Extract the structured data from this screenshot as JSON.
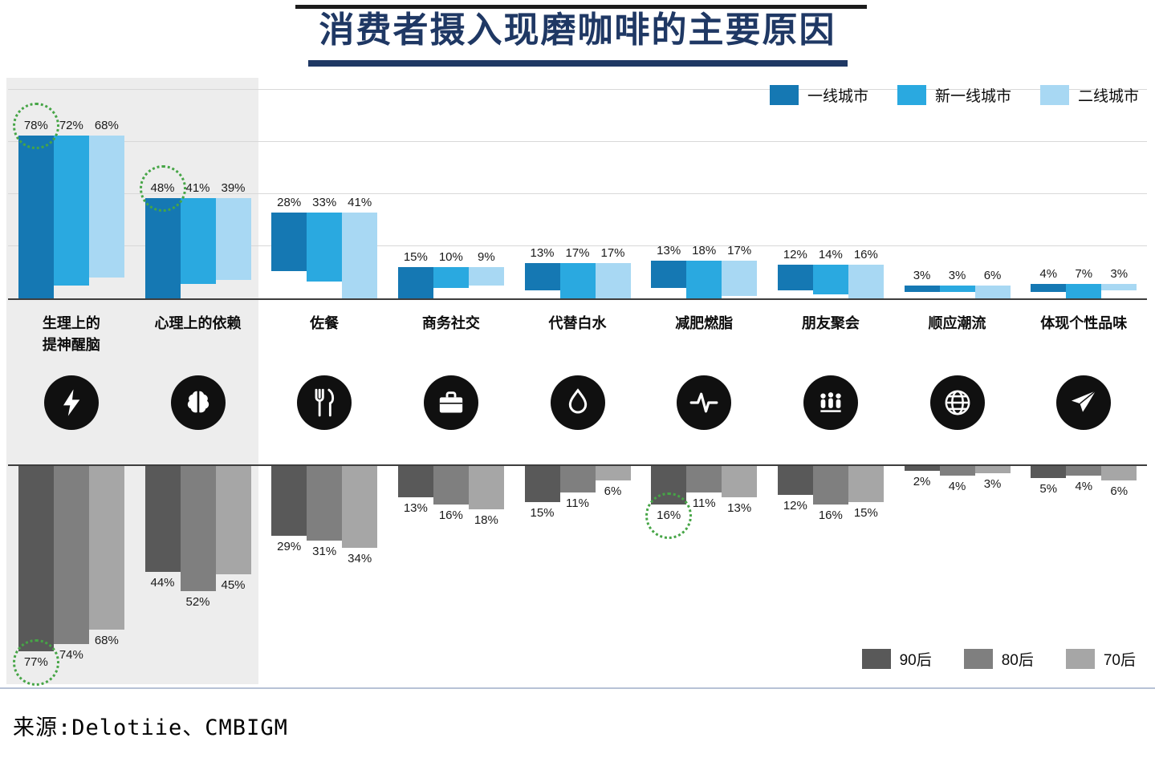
{
  "title": "消费者摄入现磨咖啡的主要原因",
  "source": "来源:Delotiie、CMBIGM",
  "legend_top": [
    {
      "label": "一线城市",
      "color": "#1578b3"
    },
    {
      "label": "新一线城市",
      "color": "#2aa9e0"
    },
    {
      "label": "二线城市",
      "color": "#a8d8f3"
    }
  ],
  "legend_bottom": [
    {
      "label": "90后",
      "color": "#595959"
    },
    {
      "label": "80后",
      "color": "#7f7f7f"
    },
    {
      "label": "70后",
      "color": "#a6a6a6"
    }
  ],
  "chart_data": {
    "type": "bar",
    "title": "消费者摄入现磨咖啡的主要原因",
    "categories": [
      "生理上的提神醒脑",
      "心理上的依赖",
      "佐餐",
      "商务社交",
      "代替白水",
      "减肥燃脂",
      "朋友聚会",
      "顺应潮流",
      "体现个性品味"
    ],
    "category_lines": [
      [
        "生理上的",
        "提神醒脑"
      ],
      [
        "心理上的依赖"
      ],
      [
        "佐餐"
      ],
      [
        "商务社交"
      ],
      [
        "代替白水"
      ],
      [
        "减肥燃脂"
      ],
      [
        "朋友聚会"
      ],
      [
        "顺应潮流"
      ],
      [
        "体现个性品味"
      ]
    ],
    "icons": [
      "lightning-icon",
      "brain-icon",
      "meal-icon",
      "briefcase-icon",
      "waterdrop-icon",
      "pulse-icon",
      "people-icon",
      "globe-icon",
      "rocket-icon"
    ],
    "unit": "%",
    "highlighted_category_band": [
      0,
      1
    ],
    "top_chart": {
      "direction": "up",
      "legend_position": "top-right",
      "grid": true,
      "series": [
        {
          "name": "一线城市",
          "color": "#1578b3",
          "values": [
            78,
            48,
            28,
            15,
            13,
            13,
            12,
            3,
            4
          ]
        },
        {
          "name": "新一线城市",
          "color": "#2aa9e0",
          "values": [
            72,
            41,
            33,
            10,
            17,
            18,
            14,
            3,
            7
          ]
        },
        {
          "name": "二线城市",
          "color": "#a8d8f3",
          "values": [
            68,
            39,
            41,
            9,
            17,
            17,
            16,
            6,
            3
          ]
        }
      ],
      "highlighted_values": [
        [
          0,
          0
        ],
        [
          1,
          0
        ]
      ]
    },
    "bottom_chart": {
      "direction": "down",
      "legend_position": "bottom-right",
      "grid": false,
      "series": [
        {
          "name": "90后",
          "color": "#595959",
          "values": [
            77,
            44,
            29,
            13,
            15,
            16,
            12,
            2,
            5
          ]
        },
        {
          "name": "80后",
          "color": "#7f7f7f",
          "values": [
            74,
            52,
            31,
            16,
            11,
            11,
            16,
            4,
            4
          ]
        },
        {
          "name": "70后",
          "color": "#a6a6a6",
          "values": [
            68,
            45,
            34,
            18,
            6,
            13,
            15,
            3,
            6
          ]
        }
      ],
      "highlighted_values": [
        [
          0,
          0
        ],
        [
          5,
          0
        ]
      ]
    },
    "highlight_circle_color": "#46a546"
  }
}
